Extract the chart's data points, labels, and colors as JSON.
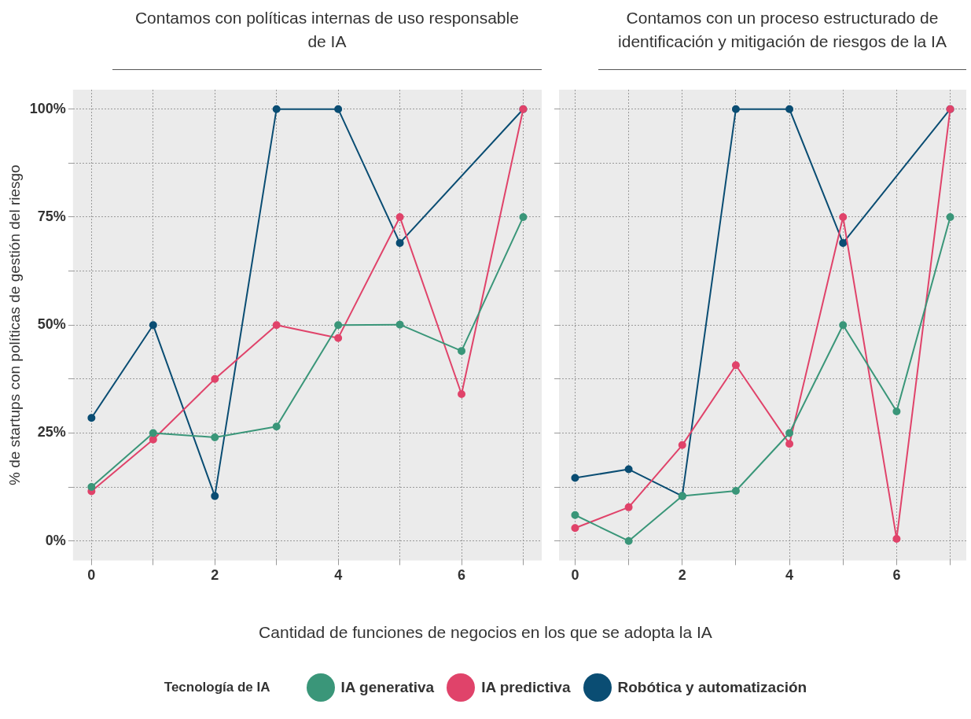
{
  "chart_data": [
    {
      "type": "line",
      "title": "Contamos con políticas internas de uso responsable de IA",
      "xlabel": "Cantidad de funciones de negocios en los que se adopta la IA",
      "ylabel": "% de startups con políticas de gestión del riesgo",
      "legend_title": "Tecnología de IA",
      "legend": "bottom",
      "grid": true,
      "marker": "circle",
      "x": [
        0,
        1,
        2,
        3,
        4,
        5,
        6,
        7
      ],
      "xlim": [
        -0.3,
        7.3
      ],
      "ylim": [
        -4.5,
        104.5
      ],
      "xticks": [
        0,
        {
          "value": 1,
          "label": null
        },
        2,
        {
          "value": 3,
          "label": null
        },
        4,
        {
          "value": 5,
          "label": null
        },
        6,
        {
          "value": 7,
          "label": null
        }
      ],
      "yticks": [
        {
          "value": 0,
          "label": "0%"
        },
        {
          "value": 12.5,
          "label": null
        },
        {
          "value": 25,
          "label": "25%"
        },
        {
          "value": 37.5,
          "label": null
        },
        {
          "value": 50,
          "label": "50%"
        },
        {
          "value": 62.5,
          "label": null
        },
        {
          "value": 75,
          "label": "75%"
        },
        {
          "value": 87.5,
          "label": null
        },
        {
          "value": 100,
          "label": "100%"
        }
      ],
      "series": [
        {
          "name": "IA generativa",
          "color": "#3a9679",
          "values": [
            12.5,
            25,
            24,
            26.5,
            50,
            50.1,
            44,
            75
          ]
        },
        {
          "name": "IA predictiva",
          "color": "#e0436a",
          "values": [
            11.5,
            23.5,
            37.5,
            50,
            47,
            75,
            34,
            100
          ]
        },
        {
          "name": "Robótica y automatización",
          "color": "#0a4d73",
          "values": [
            28.5,
            50,
            10.4,
            100,
            100,
            69,
            null,
            100
          ]
        }
      ]
    },
    {
      "type": "line",
      "title": "Contamos con un proceso estructurado de identificación y mitigación de riesgos de la IA",
      "grid": true,
      "marker": "circle",
      "tick_labels": "x",
      "x": [
        0,
        1,
        2,
        3,
        4,
        5,
        6,
        7
      ],
      "xlim": [
        -0.3,
        7.3
      ],
      "ylim": [
        -4.5,
        104.5
      ],
      "xticks": [
        0,
        {
          "value": 1,
          "label": null
        },
        2,
        {
          "value": 3,
          "label": null
        },
        4,
        {
          "value": 5,
          "label": null
        },
        6,
        {
          "value": 7,
          "label": null
        }
      ],
      "yticks": [
        {
          "value": 0,
          "label": null
        },
        {
          "value": 12.5,
          "label": null
        },
        {
          "value": 25,
          "label": null
        },
        {
          "value": 37.5,
          "label": null
        },
        {
          "value": 50,
          "label": null
        },
        {
          "value": 62.5,
          "label": null
        },
        {
          "value": 75,
          "label": null
        },
        {
          "value": 87.5,
          "label": null
        },
        {
          "value": 100,
          "label": null
        }
      ],
      "series": [
        {
          "color": "#3a9679",
          "values": [
            6,
            0,
            10.4,
            11.6,
            25,
            50,
            30,
            75
          ]
        },
        {
          "color": "#e0436a",
          "values": [
            3,
            7.8,
            22.2,
            40.7,
            22.5,
            75,
            0.5,
            100
          ]
        },
        {
          "color": "#0a4d73",
          "values": [
            14.6,
            16.6,
            10.4,
            100,
            100,
            69,
            null,
            100
          ]
        }
      ]
    }
  ]
}
